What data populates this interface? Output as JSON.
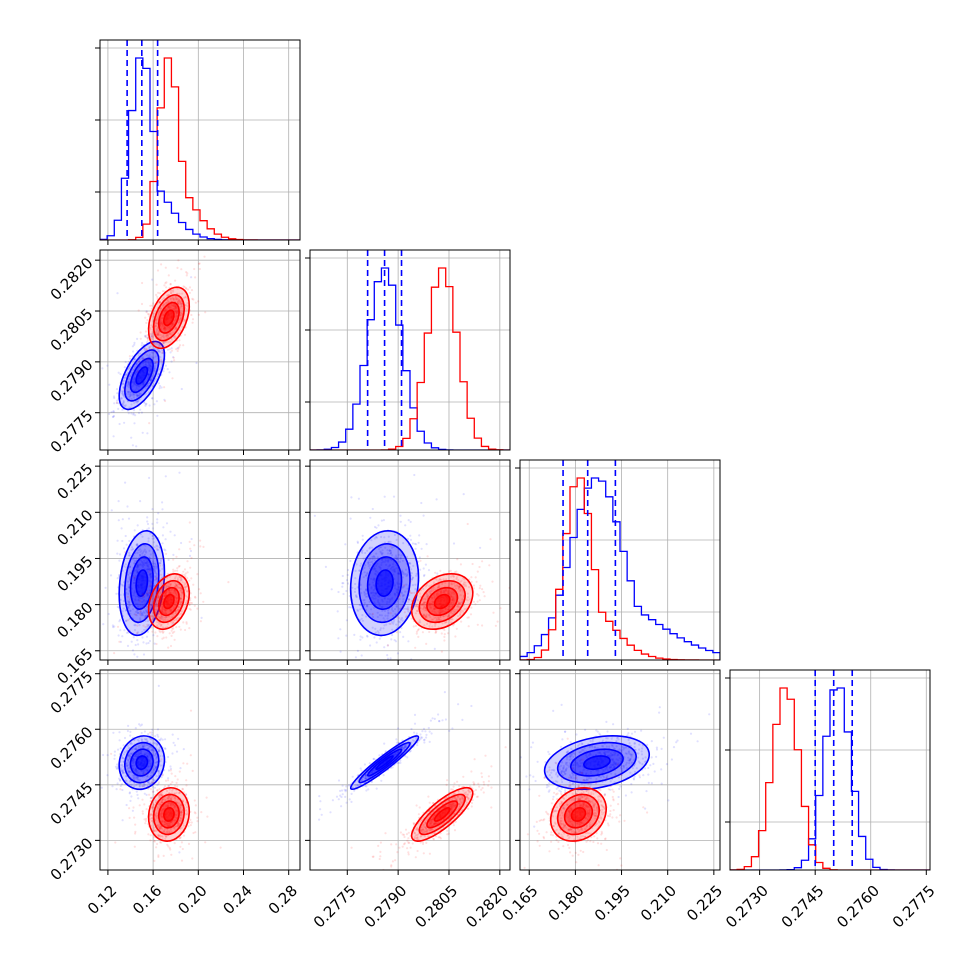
{
  "chart_data": {
    "type": "corner",
    "title": "",
    "parameters": [
      {
        "xlim": [
          0.113,
          0.29
        ],
        "ylim": [
          0,
          1.0
        ],
        "ticks": [
          0.12,
          0.16,
          0.2,
          0.24,
          0.28
        ],
        "labels": [
          "0.12",
          "0.16",
          "0.20",
          "0.24",
          "0.28"
        ]
      },
      {
        "xlim": [
          0.2764,
          0.2823
        ],
        "ylim": [
          0.2764,
          0.2823
        ],
        "ticks": [
          0.2775,
          0.279,
          0.2805,
          0.282
        ],
        "labels": [
          "0.2775",
          "0.2790",
          "0.2805",
          "0.2820"
        ]
      },
      {
        "xlim": [
          0.162,
          0.227
        ],
        "ylim": [
          0.162,
          0.227
        ],
        "ticks": [
          0.165,
          0.18,
          0.195,
          0.21,
          0.225
        ],
        "labels": [
          "0.165",
          "0.180",
          "0.195",
          "0.210",
          "0.225"
        ]
      },
      {
        "xlim": [
          0.2722,
          0.2776
        ],
        "ylim": [
          0.2722,
          0.2776
        ],
        "ticks": [
          0.273,
          0.2745,
          0.276,
          0.2775
        ],
        "labels": [
          "0.2730",
          "0.2745",
          "0.2760",
          "0.2775"
        ]
      }
    ],
    "series": [
      {
        "color": "#0000ff",
        "means": [
          0.15,
          0.2786,
          0.187,
          0.2751
        ],
        "sigmas": [
          0.01,
          0.0005,
          0.0085,
          0.00036
        ],
        "quantiles": [
          [
            0.137,
            0.15,
            0.164
          ],
          [
            0.2781,
            0.2786,
            0.2791
          ],
          [
            0.176,
            0.184,
            0.193
          ],
          [
            0.2745,
            0.275,
            0.2755
          ]
        ],
        "correlations": {
          "1-0": 0.6,
          "2-0": 0.2,
          "2-1": 0.1,
          "3-0": 0.1,
          "3-1": 0.95,
          "3-2": 0.3
        }
      },
      {
        "color": "#ff0000",
        "means": [
          0.174,
          0.2803,
          0.181,
          0.2737
        ],
        "sigmas": [
          0.009,
          0.00045,
          0.0045,
          0.00036
        ],
        "quantiles": [
          [
            0.165,
            0.174,
            0.183
          ],
          [
            0.2799,
            0.2803,
            0.2807
          ],
          [
            0.178,
            0.181,
            0.184
          ],
          [
            0.2733,
            0.2737,
            0.2741
          ]
        ],
        "correlations": {
          "1-0": 0.4,
          "2-0": 0.3,
          "2-1": 0.3,
          "3-0": 0.1,
          "3-1": 0.8,
          "3-2": 0.2
        }
      }
    ]
  }
}
